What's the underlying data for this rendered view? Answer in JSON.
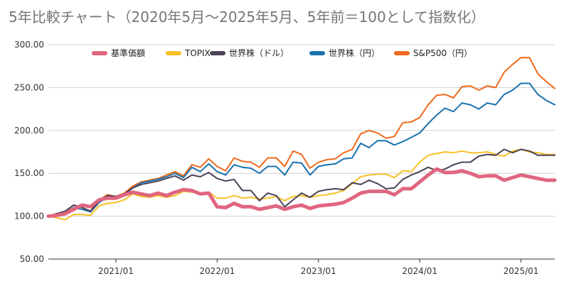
{
  "chart_data": {
    "type": "line",
    "title": "5年比較チャート（2020年5月〜2025年5月、5年前＝100として指数化）",
    "xlabel": "",
    "ylabel": "",
    "ylim": [
      50,
      300
    ],
    "yticks": [
      "50.00",
      "100.00",
      "150.00",
      "200.00",
      "250.00",
      "300.00"
    ],
    "xticks": [
      {
        "label": "2021/01",
        "x": 8
      },
      {
        "label": "2022/01",
        "x": 20
      },
      {
        "label": "2023/01",
        "x": 32
      },
      {
        "label": "2024/01",
        "x": 44
      },
      {
        "label": "2025/01",
        "x": 56
      }
    ],
    "x_range": [
      0,
      60
    ],
    "grid": true,
    "legend_position": "top",
    "series": [
      {
        "name": "基準価額",
        "color": "#e06680",
        "width": 5,
        "values": [
          100,
          101,
          103,
          108,
          113,
          111,
          119,
          121,
          121,
          125,
          128,
          126,
          124,
          127,
          124,
          128,
          131,
          130,
          126,
          127,
          111,
          110,
          115,
          111,
          111,
          108,
          110,
          112,
          108,
          111,
          113,
          109,
          112,
          113,
          114,
          116,
          121,
          127,
          129,
          129,
          129,
          125,
          132,
          132,
          140,
          148,
          155,
          151,
          151,
          153,
          150,
          146,
          147,
          147,
          142,
          145,
          148,
          146,
          144,
          142,
          142
        ]
      },
      {
        "name": "TOPIX",
        "color": "#f6c026",
        "width": 2,
        "values": [
          100,
          98,
          96,
          102,
          102,
          101,
          112,
          115,
          116,
          119,
          126,
          123,
          122,
          124,
          122,
          124,
          129,
          128,
          127,
          128,
          121,
          121,
          124,
          121,
          122,
          120,
          121,
          123,
          118,
          123,
          124,
          122,
          124,
          125,
          127,
          130,
          138,
          146,
          148,
          149,
          149,
          145,
          153,
          152,
          163,
          171,
          173,
          175,
          174,
          176,
          174,
          174,
          175,
          172,
          170,
          176,
          178,
          175,
          174,
          172,
          172
        ]
      },
      {
        "name": "世界株（ドル）",
        "color": "#4c4259",
        "width": 2,
        "values": [
          100,
          103,
          106,
          113,
          110,
          106,
          117,
          124,
          123,
          126,
          133,
          137,
          139,
          141,
          144,
          147,
          142,
          148,
          146,
          151,
          144,
          141,
          143,
          130,
          130,
          118,
          127,
          124,
          111,
          119,
          127,
          122,
          129,
          131,
          132,
          131,
          139,
          137,
          142,
          138,
          132,
          133,
          143,
          148,
          152,
          157,
          153,
          155,
          160,
          163,
          163,
          170,
          172,
          171,
          178,
          174,
          178,
          176,
          171,
          171,
          171
        ]
      },
      {
        "name": "世界株（円）",
        "color": "#1a72ad",
        "width": 2,
        "values": [
          100,
          102,
          104,
          110,
          108,
          105,
          116,
          122,
          121,
          125,
          133,
          139,
          141,
          143,
          146,
          150,
          145,
          157,
          152,
          161,
          152,
          148,
          160,
          157,
          156,
          150,
          158,
          158,
          148,
          163,
          162,
          148,
          158,
          160,
          161,
          167,
          168,
          185,
          180,
          188,
          188,
          183,
          187,
          192,
          197,
          208,
          218,
          226,
          222,
          232,
          230,
          225,
          232,
          230,
          242,
          247,
          255,
          255,
          242,
          235,
          230
        ]
      },
      {
        "name": "S&P500（円）",
        "color": "#ef6a1d",
        "width": 2,
        "values": [
          100,
          103,
          105,
          113,
          110,
          106,
          119,
          125,
          123,
          127,
          135,
          140,
          142,
          144,
          148,
          152,
          147,
          160,
          157,
          167,
          158,
          153,
          168,
          164,
          163,
          157,
          168,
          168,
          158,
          176,
          172,
          156,
          163,
          166,
          167,
          174,
          178,
          196,
          200,
          197,
          191,
          193,
          209,
          210,
          215,
          230,
          241,
          242,
          238,
          251,
          252,
          247,
          252,
          250,
          268,
          277,
          285,
          285,
          266,
          257,
          249
        ]
      }
    ]
  }
}
